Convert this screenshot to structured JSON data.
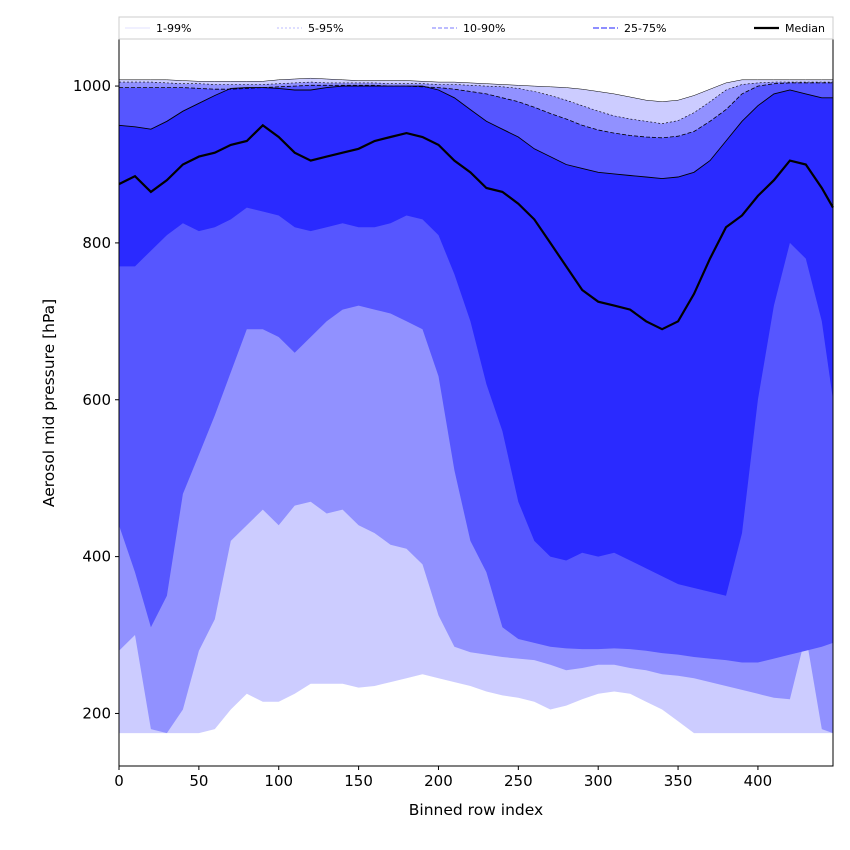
{
  "chart_data": {
    "type": "area",
    "xlabel": "Binned row index",
    "ylabel": "Aerosol mid pressure [hPa]",
    "xlim": [
      0,
      447
    ],
    "ylim": [
      133,
      1060
    ],
    "xticks": [
      0,
      50,
      100,
      150,
      200,
      250,
      300,
      350,
      400
    ],
    "yticks": [
      200,
      400,
      600,
      800,
      1000
    ],
    "legend_placement": "top (above plot, one row)",
    "legend": [
      "1-99%",
      "5-95%",
      "10-90%",
      "25-75%",
      "Median"
    ],
    "colors": {
      "band_1_99": "#ccccff",
      "band_5_95": "#9191ff",
      "band_10_90": "#5656ff",
      "band_25_75": "#2a2aff",
      "median": "#000000"
    },
    "x": [
      0,
      10,
      20,
      30,
      40,
      50,
      60,
      70,
      80,
      90,
      100,
      110,
      120,
      130,
      140,
      150,
      160,
      170,
      180,
      190,
      200,
      210,
      220,
      230,
      240,
      250,
      260,
      270,
      280,
      290,
      300,
      310,
      320,
      330,
      340,
      350,
      360,
      370,
      380,
      390,
      400,
      410,
      420,
      430,
      440,
      447
    ],
    "series": [
      {
        "name": "1-99%",
        "lower": [
          175,
          175,
          175,
          175,
          175,
          175,
          180,
          205,
          225,
          215,
          215,
          225,
          238,
          238,
          238,
          233,
          235,
          240,
          245,
          250,
          245,
          240,
          235,
          228,
          223,
          220,
          215,
          205,
          210,
          218,
          225,
          228,
          225,
          215,
          205,
          190,
          175,
          175,
          175,
          175,
          175,
          175,
          175,
          175,
          175,
          175
        ],
        "upper": [
          1008,
          1008,
          1008,
          1008,
          1007,
          1006,
          1006,
          1006,
          1006,
          1006,
          1008,
          1009,
          1010,
          1009,
          1008,
          1007,
          1007,
          1007,
          1007,
          1006,
          1005,
          1005,
          1004,
          1003,
          1002,
          1001,
          1000,
          999,
          998,
          996,
          993,
          990,
          986,
          982,
          980,
          982,
          988,
          996,
          1004,
          1008,
          1008,
          1008,
          1008,
          1008,
          1008,
          1008
        ]
      },
      {
        "name": "5-95%",
        "lower": [
          280,
          300,
          180,
          175,
          205,
          280,
          320,
          420,
          440,
          460,
          440,
          465,
          470,
          455,
          460,
          440,
          430,
          415,
          410,
          390,
          325,
          285,
          278,
          275,
          272,
          270,
          268,
          262,
          255,
          258,
          262,
          262,
          258,
          255,
          250,
          248,
          245,
          240,
          235,
          230,
          225,
          220,
          218,
          300,
          180,
          175
        ],
        "upper": [
          1005,
          1005,
          1005,
          1004,
          1003,
          1003,
          1002,
          1002,
          1002,
          1002,
          1003,
          1004,
          1005,
          1004,
          1004,
          1004,
          1004,
          1003,
          1003,
          1003,
          1002,
          1002,
          1001,
          1000,
          999,
          997,
          993,
          988,
          982,
          975,
          968,
          962,
          958,
          955,
          952,
          956,
          966,
          980,
          995,
          1002,
          1004,
          1005,
          1005,
          1005,
          1005,
          1005
        ]
      },
      {
        "name": "10-90%",
        "lower": [
          440,
          380,
          310,
          350,
          480,
          530,
          580,
          635,
          690,
          690,
          680,
          660,
          680,
          700,
          715,
          720,
          715,
          710,
          700,
          690,
          630,
          510,
          420,
          380,
          310,
          295,
          290,
          285,
          283,
          282,
          282,
          283,
          282,
          280,
          277,
          275,
          272,
          270,
          268,
          265,
          265,
          270,
          275,
          280,
          285,
          290
        ],
        "upper": [
          998,
          998,
          998,
          998,
          998,
          997,
          996,
          996,
          997,
          998,
          999,
          1000,
          1001,
          1001,
          1001,
          1001,
          1001,
          1000,
          1000,
          999,
          998,
          996,
          993,
          990,
          985,
          980,
          973,
          965,
          958,
          950,
          944,
          940,
          937,
          935,
          934,
          936,
          942,
          955,
          970,
          990,
          1000,
          1003,
          1004,
          1004,
          1004,
          1004
        ]
      },
      {
        "name": "25-75%",
        "lower": [
          770,
          770,
          790,
          810,
          825,
          815,
          820,
          830,
          845,
          840,
          835,
          820,
          815,
          820,
          825,
          820,
          820,
          825,
          835,
          830,
          810,
          760,
          700,
          620,
          560,
          470,
          420,
          400,
          395,
          405,
          400,
          405,
          395,
          385,
          375,
          365,
          360,
          355,
          350,
          430,
          600,
          720,
          800,
          780,
          700,
          600
        ]
      },
      {
        "name": "25-75% upper",
        "upper": [
          950,
          948,
          945,
          955,
          968,
          978,
          988,
          997,
          998,
          998,
          997,
          995,
          995,
          998,
          1000,
          1000,
          1000,
          1000,
          1000,
          1000,
          995,
          985,
          970,
          955,
          945,
          935,
          920,
          910,
          900,
          895,
          890,
          888,
          886,
          884,
          882,
          884,
          890,
          905,
          930,
          955,
          975,
          990,
          995,
          990,
          985,
          985
        ]
      },
      {
        "name": "Median",
        "values": [
          875,
          885,
          865,
          880,
          900,
          910,
          915,
          925,
          930,
          950,
          935,
          915,
          905,
          910,
          915,
          920,
          930,
          935,
          940,
          935,
          925,
          905,
          890,
          870,
          865,
          850,
          830,
          800,
          770,
          740,
          725,
          720,
          715,
          700,
          690,
          700,
          735,
          780,
          820,
          835,
          860,
          880,
          905,
          900,
          870,
          845
        ]
      }
    ]
  }
}
